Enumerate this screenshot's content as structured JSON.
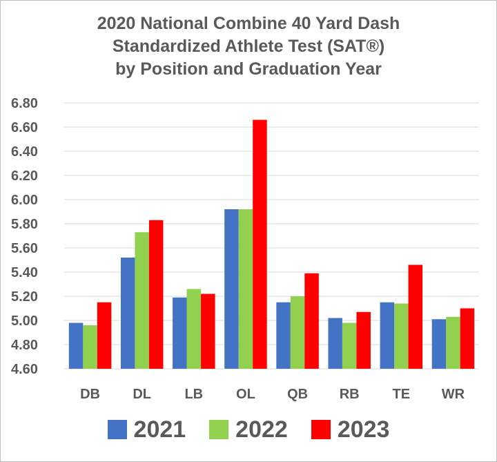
{
  "chart_data": {
    "type": "bar",
    "title_lines": [
      "2020 National Combine 40 Yard Dash",
      "Standardized Athlete Test (SAT®)",
      "by Position and Graduation Year"
    ],
    "categories": [
      "DB",
      "DL",
      "LB",
      "OL",
      "QB",
      "RB",
      "TE",
      "WR"
    ],
    "series": [
      {
        "name": "2021",
        "color": "#4472c4",
        "values": [
          4.98,
          5.52,
          5.19,
          5.92,
          5.15,
          5.02,
          5.15,
          5.01
        ]
      },
      {
        "name": "2022",
        "color": "#92d050",
        "values": [
          4.96,
          5.73,
          5.26,
          5.92,
          5.2,
          4.98,
          5.14,
          5.03
        ]
      },
      {
        "name": "2023",
        "color": "#ff0000",
        "values": [
          5.15,
          5.83,
          5.22,
          6.66,
          5.39,
          5.07,
          5.46,
          5.1
        ]
      }
    ],
    "ylim": [
      4.6,
      6.8
    ],
    "yticks": [
      "4.60",
      "4.80",
      "5.00",
      "5.20",
      "5.40",
      "5.60",
      "5.80",
      "6.00",
      "6.20",
      "6.40",
      "6.60",
      "6.80"
    ],
    "grid": true,
    "gridline_color": "#d9d9d9",
    "legend_position": "bottom"
  }
}
